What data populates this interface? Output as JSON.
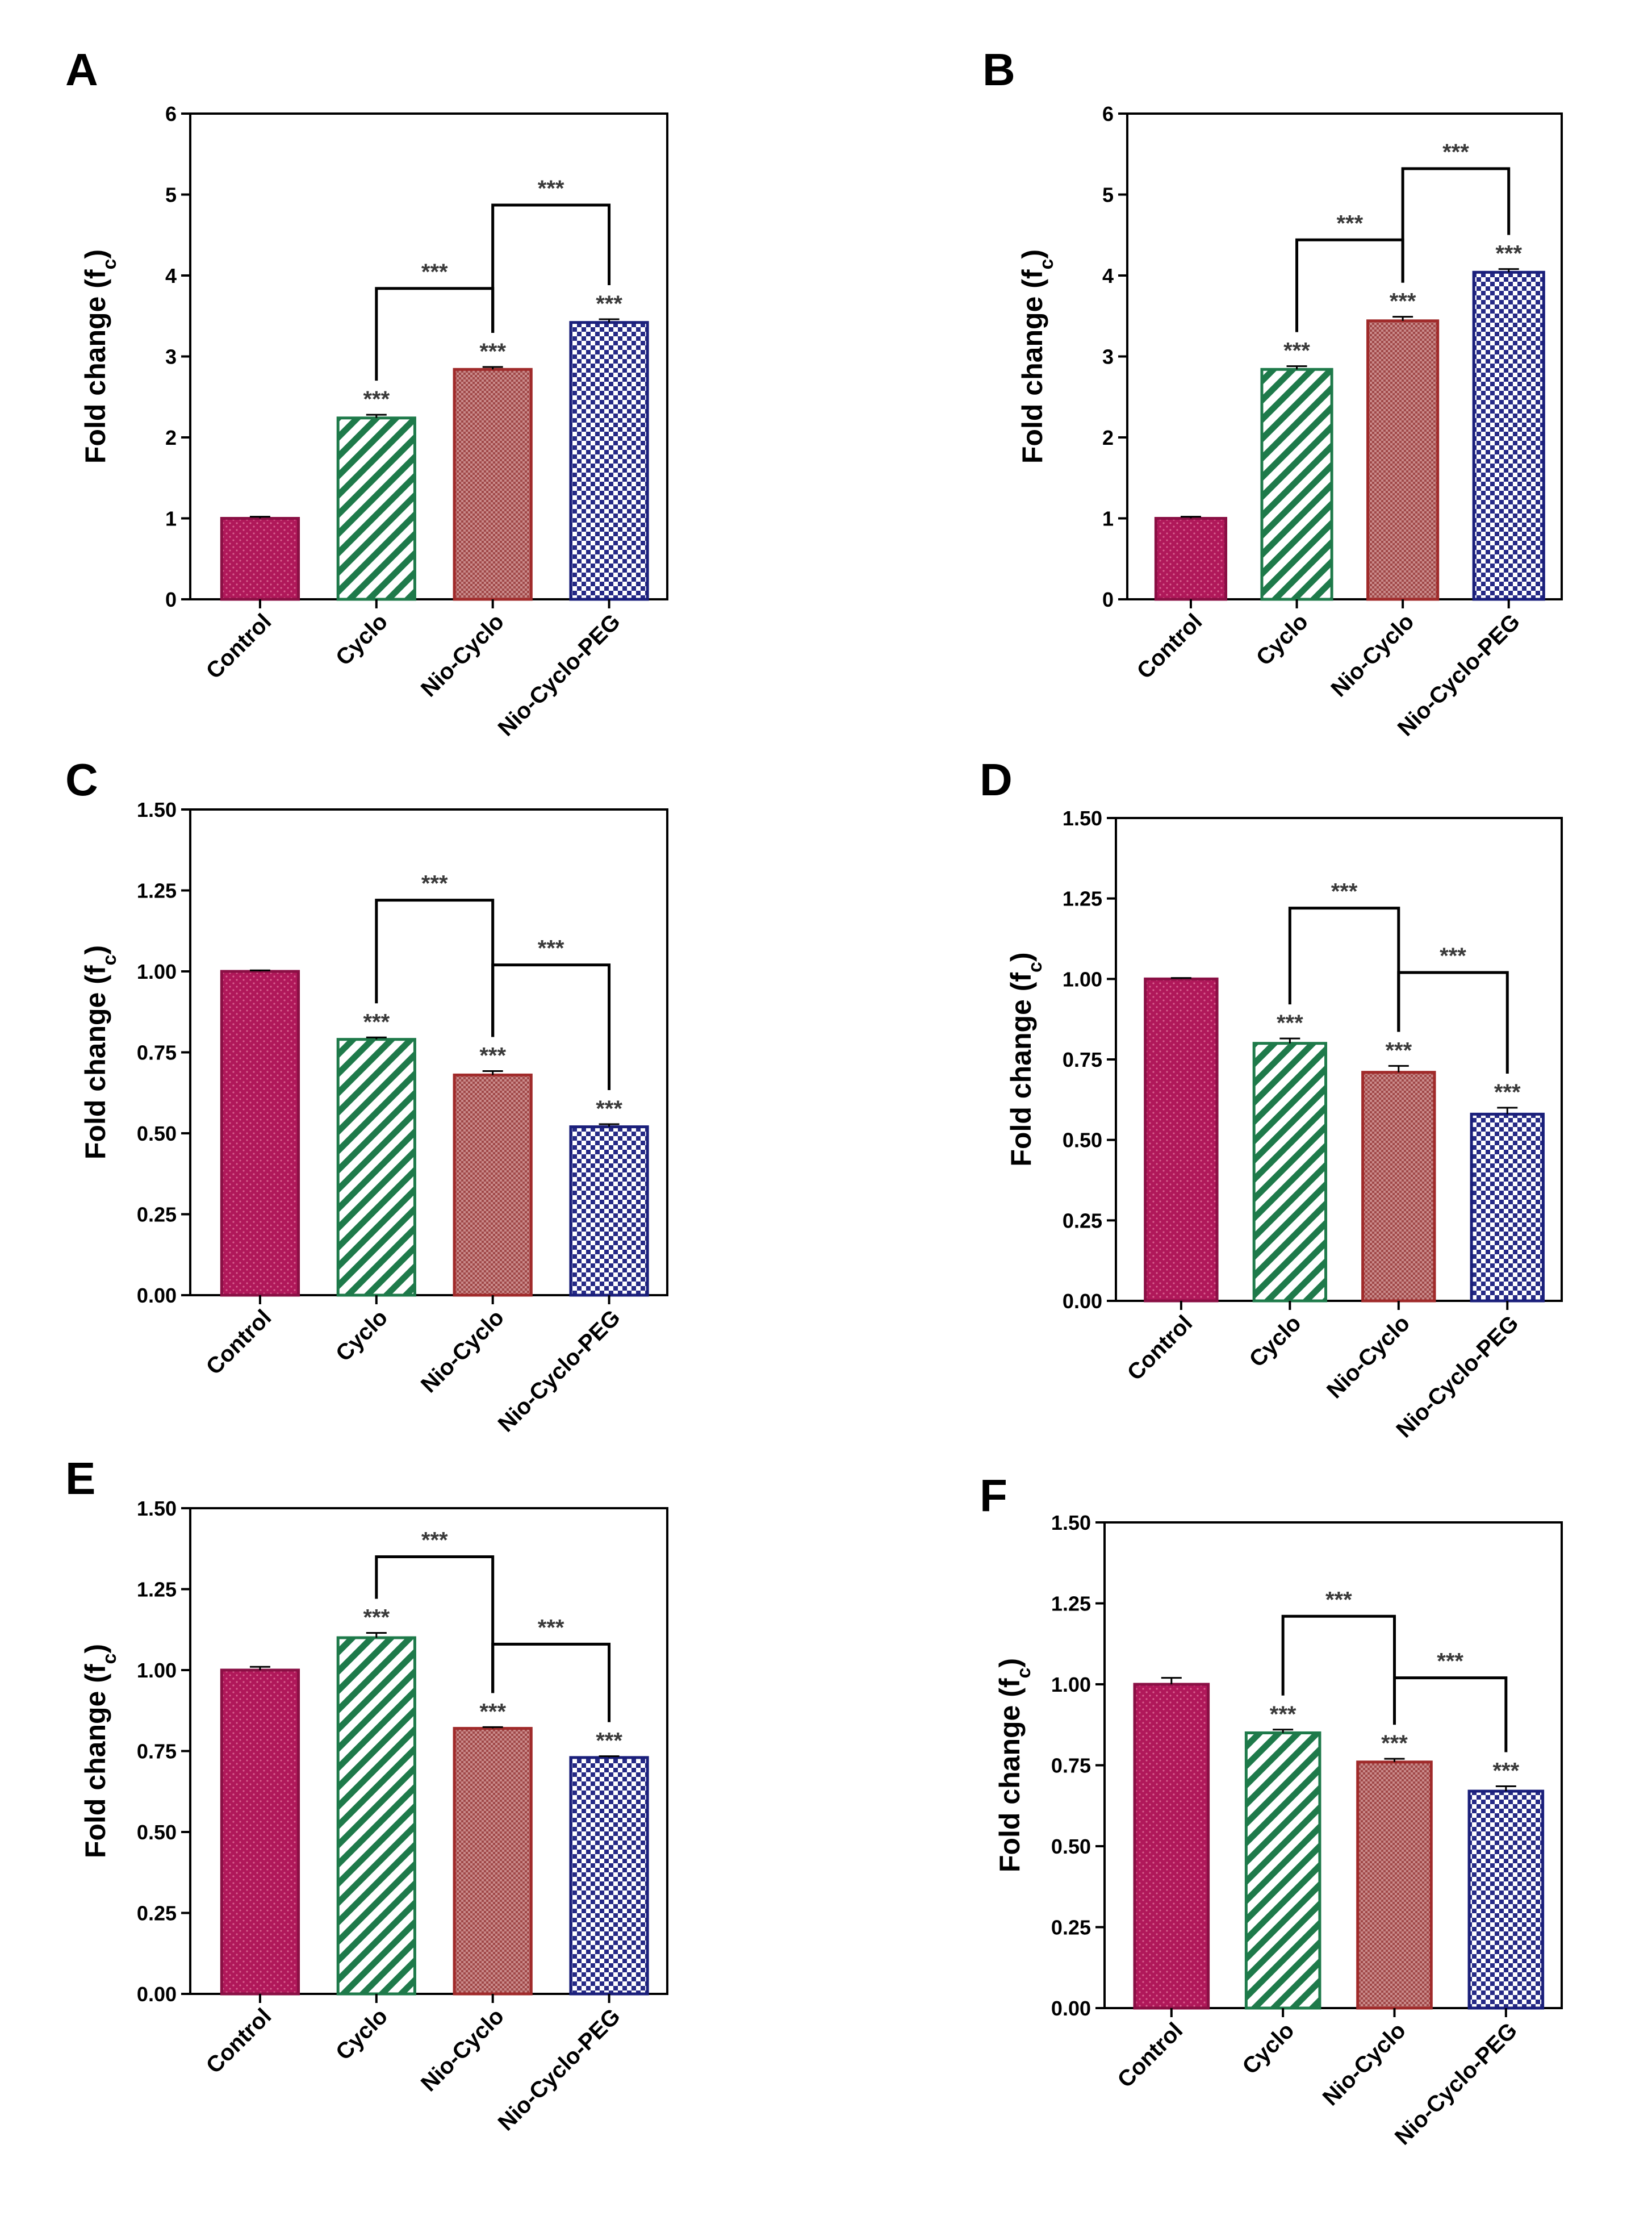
{
  "categories": [
    "Control",
    "Cyclo",
    "Nio-Cyclo",
    "Nio-Cyclo-PEG"
  ],
  "bar_styles": [
    {
      "fill": "#b0185a",
      "stroke": "#8a0f44",
      "pattern": "dots"
    },
    {
      "fill": "#1e7a4a",
      "stroke": "#1e7a4a",
      "pattern": "diagonal"
    },
    {
      "fill": "#b96a6a",
      "stroke": "#a02a2a",
      "pattern": "fine"
    },
    {
      "fill": "#2b2f8a",
      "stroke": "#1a1f7a",
      "pattern": "checker"
    }
  ],
  "significance": "***",
  "chart_data": [
    {
      "panel": "A",
      "type": "bar",
      "categories": [
        "Control",
        "Cyclo",
        "Nio-Cyclo",
        "Nio-Cyclo-PEG"
      ],
      "values": [
        1.0,
        2.24,
        2.84,
        3.42
      ],
      "errors": [
        0.02,
        0.04,
        0.03,
        0.04
      ],
      "ylabel": "Fold change (fc)",
      "ylabel_main": "Fold change (f",
      "ylabel_sub": "c",
      "ylabel_end": ")",
      "ylim": [
        0,
        6
      ],
      "yticks": [
        "0",
        "1",
        "2",
        "3",
        "4",
        "5",
        "6"
      ],
      "ytick_values": [
        0,
        1,
        2,
        3,
        4,
        5,
        6
      ],
      "bar_stars": [
        "",
        "***",
        "***",
        "***"
      ],
      "brackets": [
        {
          "from": "Cyclo",
          "to": "Nio-Cyclo",
          "level": 3.84,
          "label": "***"
        },
        {
          "from": "Nio-Cyclo",
          "to": "Nio-Cyclo-PEG",
          "level": 4.87,
          "label": "***"
        }
      ]
    },
    {
      "panel": "B",
      "type": "bar",
      "categories": [
        "Control",
        "Cyclo",
        "Nio-Cyclo",
        "Nio-Cyclo-PEG"
      ],
      "values": [
        1.0,
        2.84,
        3.44,
        4.04
      ],
      "errors": [
        0.02,
        0.04,
        0.05,
        0.04
      ],
      "ylabel": "Fold change (fc)",
      "ylabel_main": "Fold change (f",
      "ylabel_sub": "c",
      "ylabel_end": ")",
      "ylim": [
        0,
        6
      ],
      "yticks": [
        "0",
        "1",
        "2",
        "3",
        "4",
        "5",
        "6"
      ],
      "ytick_values": [
        0,
        1,
        2,
        3,
        4,
        5,
        6
      ],
      "bar_stars": [
        "",
        "***",
        "***",
        "***"
      ],
      "brackets": [
        {
          "from": "Cyclo",
          "to": "Nio-Cyclo",
          "level": 4.44,
          "label": "***"
        },
        {
          "from": "Nio-Cyclo",
          "to": "Nio-Cyclo-PEG",
          "level": 5.32,
          "label": "***"
        }
      ]
    },
    {
      "panel": "C",
      "type": "bar",
      "categories": [
        "Control",
        "Cyclo",
        "Nio-Cyclo",
        "Nio-Cyclo-PEG"
      ],
      "values": [
        1.0,
        0.79,
        0.68,
        0.52
      ],
      "errors": [
        0.003,
        0.006,
        0.012,
        0.008
      ],
      "ylabel": "Fold change (fc)",
      "ylabel_main": "Fold change (f",
      "ylabel_sub": "c",
      "ylabel_end": ")",
      "ylim": [
        0,
        1.5
      ],
      "yticks": [
        "0.00",
        "0.25",
        "0.50",
        "0.75",
        "1.00",
        "1.25",
        "1.50"
      ],
      "ytick_values": [
        0,
        0.25,
        0.5,
        0.75,
        1.0,
        1.25,
        1.5
      ],
      "bar_stars": [
        "",
        "***",
        "***",
        "***"
      ],
      "brackets": [
        {
          "from": "Cyclo",
          "to": "Nio-Cyclo",
          "level": 1.22,
          "label": "***"
        },
        {
          "from": "Nio-Cyclo",
          "to": "Nio-Cyclo-PEG",
          "level": 1.02,
          "label": "***"
        }
      ]
    },
    {
      "panel": "D",
      "type": "bar",
      "categories": [
        "Control",
        "Cyclo",
        "Nio-Cyclo",
        "Nio-Cyclo-PEG"
      ],
      "values": [
        1.0,
        0.8,
        0.71,
        0.58
      ],
      "errors": [
        0.003,
        0.015,
        0.02,
        0.02
      ],
      "ylabel": "Fold change (fc)",
      "ylabel_main": "Fold change (f",
      "ylabel_sub": "c",
      "ylabel_end": ")",
      "ylim": [
        0,
        1.5
      ],
      "yticks": [
        "0.00",
        "0.25",
        "0.50",
        "0.75",
        "1.00",
        "1.25",
        "1.50"
      ],
      "ytick_values": [
        0,
        0.25,
        0.5,
        0.75,
        1.0,
        1.25,
        1.5
      ],
      "bar_stars": [
        "",
        "***",
        "***",
        "***"
      ],
      "brackets": [
        {
          "from": "Cyclo",
          "to": "Nio-Cyclo",
          "level": 1.22,
          "label": "***"
        },
        {
          "from": "Nio-Cyclo",
          "to": "Nio-Cyclo-PEG",
          "level": 1.02,
          "label": "***"
        }
      ]
    },
    {
      "panel": "E",
      "type": "bar",
      "categories": [
        "Control",
        "Cyclo",
        "Nio-Cyclo",
        "Nio-Cyclo-PEG"
      ],
      "values": [
        1.0,
        1.1,
        0.82,
        0.73
      ],
      "errors": [
        0.01,
        0.015,
        0.004,
        0.004
      ],
      "ylabel": "Fold change (fc)",
      "ylabel_main": "Fold change (f",
      "ylabel_sub": "c",
      "ylabel_end": ")",
      "ylim": [
        0,
        1.5
      ],
      "yticks": [
        "0.00",
        "0.25",
        "0.50",
        "0.75",
        "1.00",
        "1.25",
        "1.50"
      ],
      "ytick_values": [
        0,
        0.25,
        0.5,
        0.75,
        1.0,
        1.25,
        1.5
      ],
      "bar_stars": [
        "",
        "***",
        "***",
        "***"
      ],
      "brackets": [
        {
          "from": "Cyclo",
          "to": "Nio-Cyclo",
          "level": 1.35,
          "label": "***"
        },
        {
          "from": "Nio-Cyclo",
          "to": "Nio-Cyclo-PEG",
          "level": 1.08,
          "label": "***"
        }
      ]
    },
    {
      "panel": "F",
      "type": "bar",
      "categories": [
        "Control",
        "Cyclo",
        "Nio-Cyclo",
        "Nio-Cyclo-PEG"
      ],
      "values": [
        1.0,
        0.85,
        0.76,
        0.67
      ],
      "errors": [
        0.02,
        0.01,
        0.01,
        0.015
      ],
      "ylabel": "Fold change (fc)",
      "ylabel_main": "Fold change (f",
      "ylabel_sub": "c",
      "ylabel_end": ")",
      "ylim": [
        0,
        1.5
      ],
      "yticks": [
        "0.00",
        "0.25",
        "0.50",
        "0.75",
        "1.00",
        "1.25",
        "1.50"
      ],
      "ytick_values": [
        0,
        0.25,
        0.5,
        0.75,
        1.0,
        1.25,
        1.5
      ],
      "bar_stars": [
        "",
        "***",
        "***",
        "***"
      ],
      "brackets": [
        {
          "from": "Cyclo",
          "to": "Nio-Cyclo",
          "level": 1.21,
          "label": "***"
        },
        {
          "from": "Nio-Cyclo",
          "to": "Nio-Cyclo-PEG",
          "level": 1.02,
          "label": "***"
        }
      ]
    }
  ]
}
